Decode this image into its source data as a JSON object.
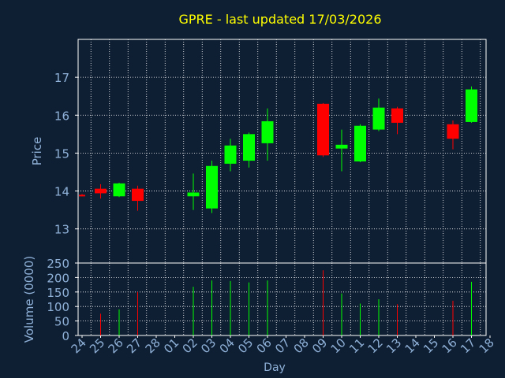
{
  "title": "GPRE - last updated 17/03/2026",
  "colors": {
    "background": "#0f1f33",
    "panel": "#0f1f33",
    "frame": "#ffffff",
    "grid": "#ffffff",
    "title": "#ffff00",
    "axis_text": "#8fb1d8",
    "up": "#00ff00",
    "down": "#ff0000"
  },
  "chart_data": [
    {
      "type": "candlestick",
      "ylabel": "Price",
      "ylim": [
        12.1,
        18
      ],
      "yticks": [
        13,
        14,
        15,
        16,
        17
      ],
      "grid": true,
      "x": [
        "24",
        "25",
        "26",
        "27",
        "28",
        "01",
        "02",
        "03",
        "04",
        "05",
        "06",
        "07",
        "08",
        "09",
        "10",
        "11",
        "12",
        "13",
        "14",
        "15",
        "16",
        "17",
        "18"
      ],
      "candles": [
        {
          "x": "24",
          "open": 13.9,
          "high": 13.92,
          "low": 13.86,
          "close": 13.88
        },
        {
          "x": "25",
          "open": 14.06,
          "high": 14.18,
          "low": 13.8,
          "close": 13.94
        },
        {
          "x": "26",
          "open": 13.86,
          "high": 14.22,
          "low": 13.84,
          "close": 14.2
        },
        {
          "x": "27",
          "open": 14.06,
          "high": 14.14,
          "low": 13.48,
          "close": 13.74
        },
        {
          "x": "02",
          "open": 13.86,
          "high": 14.46,
          "low": 13.5,
          "close": 13.96
        },
        {
          "x": "03",
          "open": 13.54,
          "high": 14.8,
          "low": 13.42,
          "close": 14.66
        },
        {
          "x": "04",
          "open": 14.72,
          "high": 15.38,
          "low": 14.52,
          "close": 15.2
        },
        {
          "x": "05",
          "open": 14.8,
          "high": 15.54,
          "low": 14.62,
          "close": 15.5
        },
        {
          "x": "06",
          "open": 15.26,
          "high": 16.18,
          "low": 14.8,
          "close": 15.84
        },
        {
          "x": "09",
          "open": 16.3,
          "high": 16.32,
          "low": 14.9,
          "close": 14.94
        },
        {
          "x": "10",
          "open": 15.12,
          "high": 15.62,
          "low": 14.52,
          "close": 15.22
        },
        {
          "x": "11",
          "open": 14.78,
          "high": 15.76,
          "low": 14.76,
          "close": 15.72
        },
        {
          "x": "12",
          "open": 15.62,
          "high": 16.44,
          "low": 15.58,
          "close": 16.2
        },
        {
          "x": "13",
          "open": 16.18,
          "high": 16.22,
          "low": 15.5,
          "close": 15.8
        },
        {
          "x": "16",
          "open": 15.76,
          "high": 15.86,
          "low": 15.1,
          "close": 15.38
        },
        {
          "x": "17",
          "open": 15.82,
          "high": 16.76,
          "low": 15.8,
          "close": 16.68
        }
      ]
    },
    {
      "type": "bar",
      "ylabel": "Volume (0000)",
      "xlabel": "Day",
      "ylim": [
        0,
        250
      ],
      "yticks": [
        0,
        50,
        100,
        150,
        200,
        250
      ],
      "grid": true,
      "x": [
        "24",
        "25",
        "26",
        "27",
        "28",
        "01",
        "02",
        "03",
        "04",
        "05",
        "06",
        "07",
        "08",
        "09",
        "10",
        "11",
        "12",
        "13",
        "14",
        "15",
        "16",
        "17",
        "18"
      ],
      "bars": [
        {
          "x": "25",
          "value": 75,
          "dir": "down"
        },
        {
          "x": "26",
          "value": 90,
          "dir": "up"
        },
        {
          "x": "27",
          "value": 150,
          "dir": "down"
        },
        {
          "x": "02",
          "value": 168,
          "dir": "up"
        },
        {
          "x": "03",
          "value": 190,
          "dir": "up"
        },
        {
          "x": "04",
          "value": 188,
          "dir": "up"
        },
        {
          "x": "05",
          "value": 183,
          "dir": "up"
        },
        {
          "x": "06",
          "value": 190,
          "dir": "up"
        },
        {
          "x": "09",
          "value": 225,
          "dir": "down"
        },
        {
          "x": "10",
          "value": 145,
          "dir": "up"
        },
        {
          "x": "11",
          "value": 110,
          "dir": "up"
        },
        {
          "x": "12",
          "value": 125,
          "dir": "up"
        },
        {
          "x": "13",
          "value": 108,
          "dir": "down"
        },
        {
          "x": "16",
          "value": 120,
          "dir": "down"
        },
        {
          "x": "17",
          "value": 185,
          "dir": "up"
        }
      ]
    }
  ]
}
